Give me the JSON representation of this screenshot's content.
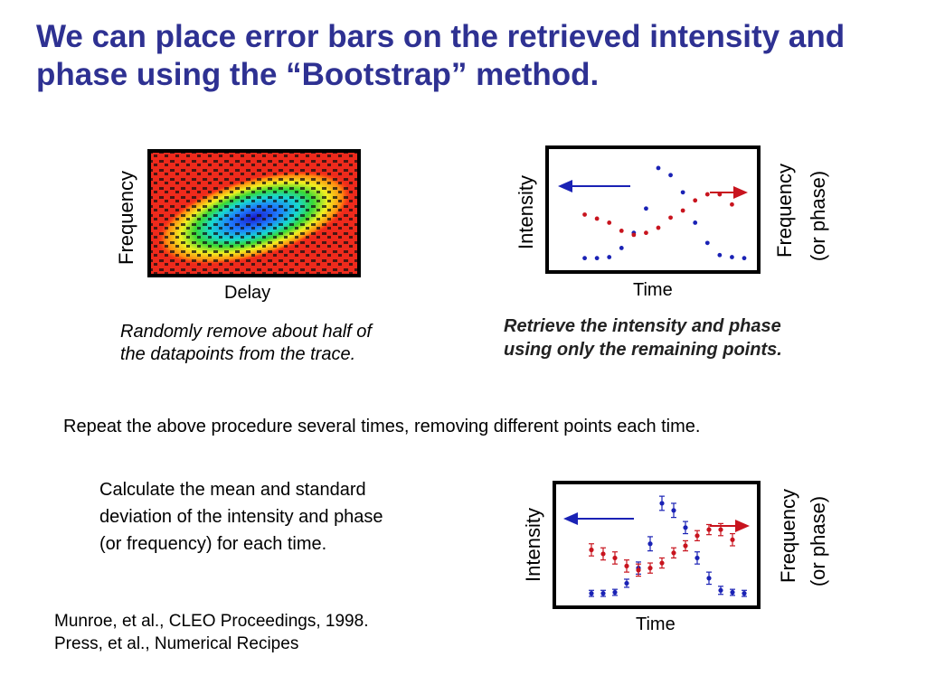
{
  "title": "We can place error bars on the retrieved intensity and phase using the “Bootstrap” method.",
  "trace": {
    "ylabel": "Frequency",
    "xlabel": "Delay",
    "caption_line1": "Randomly remove about half of",
    "caption_line2": "the datapoints from the trace."
  },
  "retrieval_plot": {
    "ylabel_left": "Intensity",
    "ylabel_right_line1": "Frequency",
    "ylabel_right_line2": "(or phase)",
    "xlabel": "Time",
    "caption_line1": "Retrieve the intensity and phase",
    "caption_line2": "using only the remaining points."
  },
  "repeat_text": "Repeat the above procedure several times, removing different points each time.",
  "calc_text": {
    "line1": "Calculate the mean and standard",
    "line2": "deviation of the intensity and phase",
    "line3": "(or frequency) for each time."
  },
  "errorbar_plot": {
    "ylabel_left": "Intensity",
    "ylabel_right_line1": "Frequency",
    "ylabel_right_line2": "(or phase)",
    "xlabel": "Time"
  },
  "references": {
    "line1": "Munroe, et al., CLEO Proceedings, 1998.",
    "line2": "Press, et al., Numerical Recipes"
  },
  "colors": {
    "title": "#2e3192",
    "intensity": "#1a22b5",
    "phase": "#c8141e"
  },
  "chart_data": [
    {
      "type": "scatter",
      "name": "retrieval",
      "xlabel": "Time",
      "ylabel": "Intensity",
      "y2label": "Frequency (or phase)",
      "xlim": [
        0,
        14
      ],
      "ylim": [
        0,
        10
      ],
      "series": [
        {
          "name": "Intensity",
          "color": "#1a22b5",
          "x": [
            1,
            2,
            3,
            4,
            5,
            6,
            7,
            8,
            9,
            10,
            11,
            12,
            13,
            14
          ],
          "values": [
            0.3,
            0.3,
            0.4,
            1.3,
            2.8,
            5.2,
            9.2,
            8.5,
            6.8,
            3.8,
            1.8,
            0.6,
            0.4,
            0.3
          ]
        },
        {
          "name": "Frequency (or phase)",
          "color": "#c8141e",
          "x": [
            1,
            2,
            3,
            4,
            5,
            6,
            7,
            8,
            9,
            10,
            11,
            12,
            13
          ],
          "values": [
            4.6,
            4.2,
            3.8,
            3.0,
            2.6,
            2.8,
            3.3,
            4.3,
            5.0,
            6.0,
            6.6,
            6.6,
            5.6
          ]
        }
      ]
    },
    {
      "type": "scatter",
      "name": "errorbars",
      "xlabel": "Time",
      "ylabel": "Intensity",
      "y2label": "Frequency (or phase)",
      "xlim": [
        0,
        14
      ],
      "ylim": [
        0,
        10
      ],
      "series": [
        {
          "name": "Intensity",
          "color": "#1a22b5",
          "x": [
            1,
            2,
            3,
            4,
            5,
            6,
            7,
            8,
            9,
            10,
            11,
            12,
            13,
            14
          ],
          "values": [
            0.3,
            0.3,
            0.4,
            1.3,
            2.8,
            5.2,
            9.2,
            8.5,
            6.8,
            3.8,
            1.8,
            0.6,
            0.4,
            0.3
          ],
          "errors": [
            0.3,
            0.3,
            0.3,
            0.4,
            0.6,
            0.7,
            0.7,
            0.7,
            0.6,
            0.6,
            0.6,
            0.4,
            0.3,
            0.3
          ]
        },
        {
          "name": "Frequency (or phase)",
          "color": "#c8141e",
          "x": [
            1,
            2,
            3,
            4,
            5,
            6,
            7,
            8,
            9,
            10,
            11,
            12,
            13
          ],
          "values": [
            4.6,
            4.2,
            3.8,
            3.0,
            2.6,
            2.8,
            3.3,
            4.3,
            5.0,
            6.0,
            6.6,
            6.6,
            5.6
          ],
          "errors": [
            0.6,
            0.6,
            0.6,
            0.6,
            0.6,
            0.5,
            0.5,
            0.5,
            0.5,
            0.5,
            0.5,
            0.6,
            0.6
          ]
        }
      ]
    }
  ]
}
